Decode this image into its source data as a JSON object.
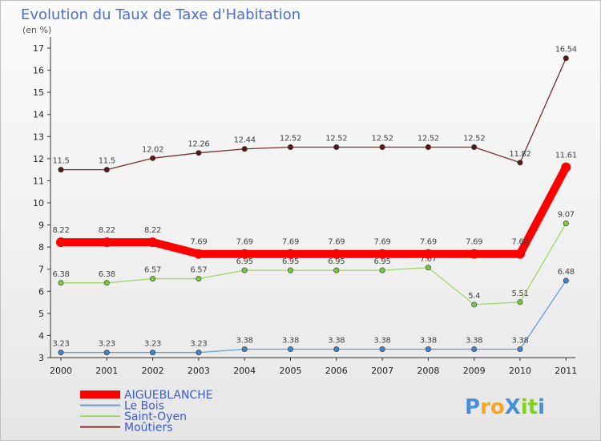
{
  "chart_data": {
    "type": "line",
    "title": "Evolution du Taux de Taxe d'Habitation",
    "unit": "(en %)",
    "xlabel": "",
    "ylabel": "",
    "ylim": [
      3,
      17
    ],
    "yticks": [
      "3",
      "4",
      "5",
      "6",
      "7",
      "8",
      "9",
      "10",
      "11",
      "12",
      "13",
      "14",
      "15",
      "16",
      "17"
    ],
    "categories": [
      "2000",
      "2001",
      "2002",
      "2003",
      "2004",
      "2005",
      "2006",
      "2007",
      "2008",
      "2009",
      "2010",
      "2011"
    ],
    "series": [
      {
        "name": "AIGUEBLANCHE",
        "color": "#ff0000",
        "marker_color": "#ff0000",
        "values": [
          8.22,
          8.22,
          8.22,
          7.69,
          7.69,
          7.69,
          7.69,
          7.69,
          7.69,
          7.69,
          7.69,
          11.61
        ],
        "labels": [
          "8.22",
          "8.22",
          "8.22",
          "7.69",
          "7.69",
          "7.69",
          "7.69",
          "7.69",
          "7.69",
          "7.69",
          "7.69",
          "11.61"
        ]
      },
      {
        "name": "Le Bois",
        "color": "#6a9bd4",
        "marker_color": "#3f84cc",
        "values": [
          3.23,
          3.23,
          3.23,
          3.23,
          3.38,
          3.38,
          3.38,
          3.38,
          3.38,
          3.38,
          3.38,
          6.48
        ],
        "labels": [
          "3.23",
          "3.23",
          "3.23",
          "3.23",
          "3.38",
          "3.38",
          "3.38",
          "3.38",
          "3.38",
          "3.38",
          "3.38",
          "6.48"
        ]
      },
      {
        "name": "Saint-Oyen",
        "color": "#9ed86c",
        "marker_color": "#78c83c",
        "values": [
          6.38,
          6.38,
          6.57,
          6.57,
          6.95,
          6.95,
          6.95,
          6.95,
          7.07,
          5.4,
          5.51,
          9.07
        ],
        "labels": [
          "6.38",
          "6.38",
          "6.57",
          "6.57",
          "6.95",
          "6.95",
          "6.95",
          "6.95",
          "7.07",
          "5.4",
          "5.51",
          "9.07"
        ]
      },
      {
        "name": "Moûtiers",
        "color": "#7a2e2e",
        "marker_color": "#5a1818",
        "values": [
          11.5,
          11.5,
          12.02,
          12.26,
          12.44,
          12.52,
          12.52,
          12.52,
          12.52,
          12.52,
          11.82,
          16.54
        ],
        "labels": [
          "11.5",
          "11.5",
          "12.02",
          "12.26",
          "12.44",
          "12.52",
          "12.52",
          "12.52",
          "12.52",
          "12.52",
          "11.82",
          "16.54"
        ]
      }
    ],
    "legend_position": "bottom-left",
    "grid": false
  },
  "logo": {
    "text": "ProXiti",
    "letters": [
      "P",
      "r",
      "o",
      "X",
      "i",
      "t",
      "i"
    ],
    "colors": [
      "#4a90d9",
      "#f5a623",
      "#f5a623",
      "#4a90d9",
      "#7ed321",
      "#7ed321",
      "#4a90d9"
    ]
  }
}
